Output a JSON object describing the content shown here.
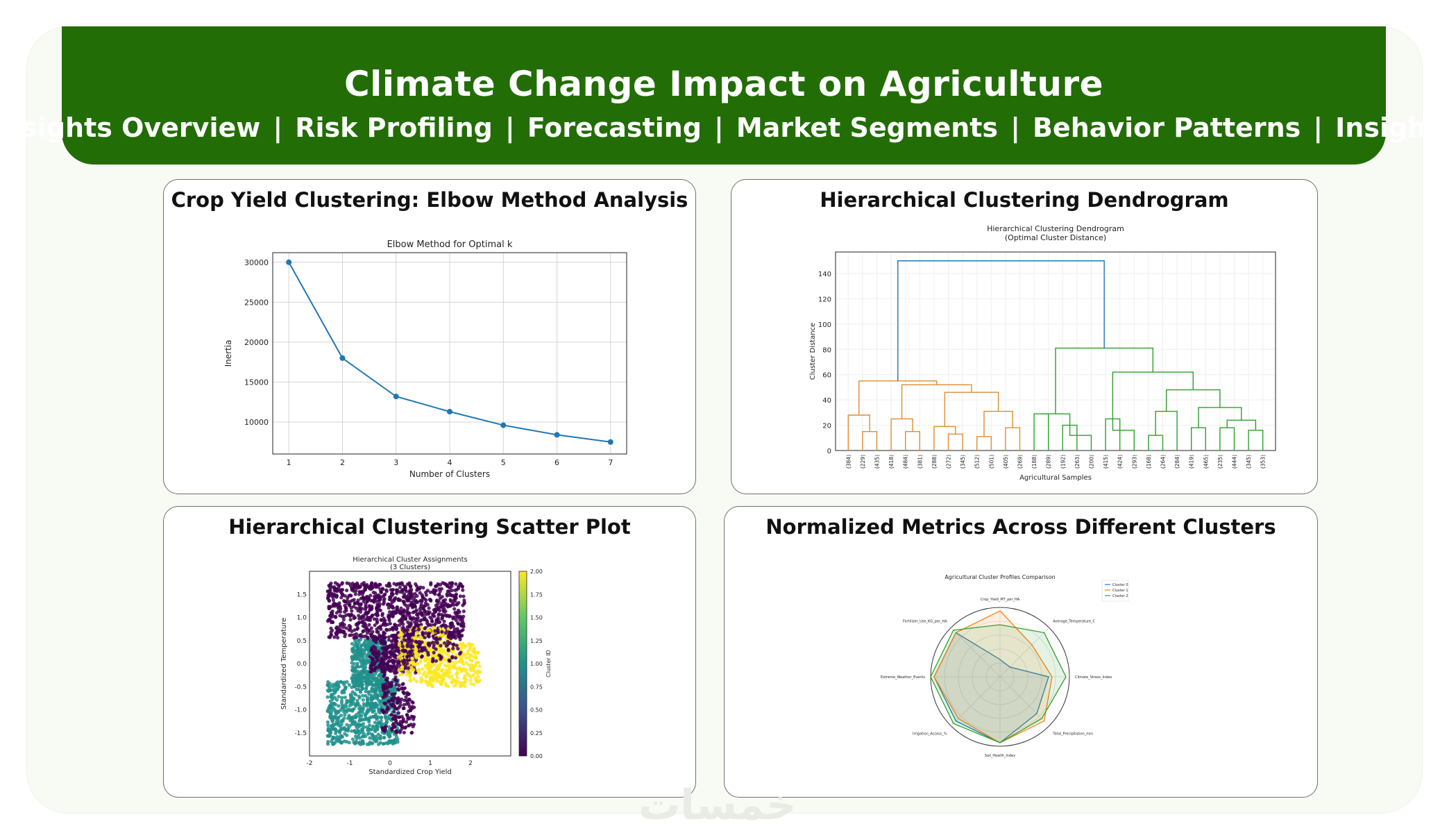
{
  "header": {
    "title": "Climate Change Impact on Agriculture",
    "nav": [
      "Insights Overview",
      "Risk Profiling",
      "Forecasting",
      "Market Segments",
      "Behavior Patterns",
      "Insights"
    ],
    "separator": "|"
  },
  "colors": {
    "header": "#236d07",
    "blue": "#1f77b4",
    "orange": "#dc8c34",
    "green": "#2ca02c"
  },
  "panels": {
    "elbow": {
      "title": "Crop Yield Clustering: Elbow Method Analysis"
    },
    "dendro": {
      "title": "Hierarchical Clustering Dendrogram"
    },
    "scatter": {
      "title": "Hierarchical Clustering Scatter Plot"
    },
    "radar": {
      "title": "Normalized Metrics Across Different Clusters"
    }
  },
  "chart_data": [
    {
      "type": "line",
      "title": "Elbow Method for Optimal k",
      "xlabel": "Number of Clusters",
      "ylabel": "Inertia",
      "x": [
        1,
        2,
        3,
        4,
        5,
        6,
        7
      ],
      "y": [
        30000,
        18000,
        13200,
        11300,
        9600,
        8400,
        7500
      ],
      "yticks": [
        10000,
        15000,
        20000,
        25000,
        30000
      ],
      "ytick_labels": [
        "10000",
        "15000",
        "20000",
        "25000",
        "30000"
      ],
      "xlim": [
        0.7,
        7.3
      ],
      "ylim": [
        6000,
        31200
      ],
      "grid": true
    },
    {
      "type": "dendrogram",
      "title": "Hierarchical Clustering Dendrogram",
      "subtitle": "(Optimal Cluster Distance)",
      "xlabel": "Agricultural Samples",
      "ylabel": "Cluster Distance",
      "yticks": [
        0,
        20,
        40,
        60,
        80,
        100,
        120,
        140
      ],
      "ylim": [
        0,
        157
      ],
      "leaf_labels": [
        "(384)",
        "(229)",
        "(435)",
        "(418)",
        "(484)",
        "(381)",
        "(288)",
        "(272)",
        "(345)",
        "(512)",
        "(501)",
        "(405)",
        "(269)",
        "(188)",
        "(289)",
        "(192)",
        "(263)",
        "(200)",
        "(415)",
        "(424)",
        "(293)",
        "(168)",
        "(264)",
        "(284)",
        "(419)",
        "(465)",
        "(235)",
        "(444)",
        "(345)",
        "(353)"
      ],
      "root_height": 150,
      "cluster_heights": {
        "orange": 55,
        "green": 81
      }
    },
    {
      "type": "scatter",
      "title": "Hierarchical Cluster Assignments",
      "subtitle": "(3 Clusters)",
      "xlabel": "Standardized Crop Yield",
      "ylabel": "Standardized Temperature",
      "colorbar_label": "Cluster ID",
      "xticks": [
        -2,
        -1,
        0,
        1,
        2
      ],
      "xtick_labels": [
        "-2",
        "-1",
        "0",
        "1",
        "2"
      ],
      "yticks": [
        -1.5,
        -1.0,
        -0.5,
        0.0,
        0.5,
        1.0,
        1.5
      ],
      "ytick_labels": [
        "-1.5",
        "-1.0",
        "-0.5",
        "0.0",
        "0.5",
        "1.0",
        "1.5"
      ],
      "colorbar_ticks": [
        "0.00",
        "0.25",
        "0.50",
        "0.75",
        "1.00",
        "1.25",
        "1.50",
        "1.75",
        "2.00"
      ],
      "xlim": [
        -2,
        3
      ],
      "ylim": [
        -2,
        2
      ],
      "clusters": [
        {
          "id": 0,
          "color": "#440154",
          "region": "top-left block"
        },
        {
          "id": 1,
          "color": "#21918c",
          "region": "bottom-left block"
        },
        {
          "id": 2,
          "color": "#fde725",
          "region": "right band"
        }
      ]
    },
    {
      "type": "radar",
      "title": "Agricultural Cluster Profiles Comparison",
      "axes": [
        "Crop_Yield_MT_per_HA",
        "Average_Temperature_C",
        "Climate_Stress_Index",
        "Total_Precipitation_mm",
        "Soil_Health_Index",
        "Irrigation_Access_%",
        "Extreme_Weather_Events",
        "Fertilizer_Use_KG_per_HA"
      ],
      "series": [
        {
          "name": "Cluster 0",
          "color": "#1f77b4",
          "values": [
            0.25,
            0.2,
            0.7,
            0.75,
            0.95,
            0.9,
            0.95,
            0.9
          ]
        },
        {
          "name": "Cluster 1",
          "color": "#ff7f0e",
          "values": [
            0.95,
            0.65,
            0.75,
            0.9,
            0.95,
            0.85,
            0.95,
            0.9
          ]
        },
        {
          "name": "Cluster 2",
          "color": "#2ca02c",
          "values": [
            0.75,
            0.9,
            0.95,
            0.85,
            0.95,
            0.95,
            1.0,
            0.95
          ]
        }
      ],
      "rmax": 1.0
    }
  ]
}
